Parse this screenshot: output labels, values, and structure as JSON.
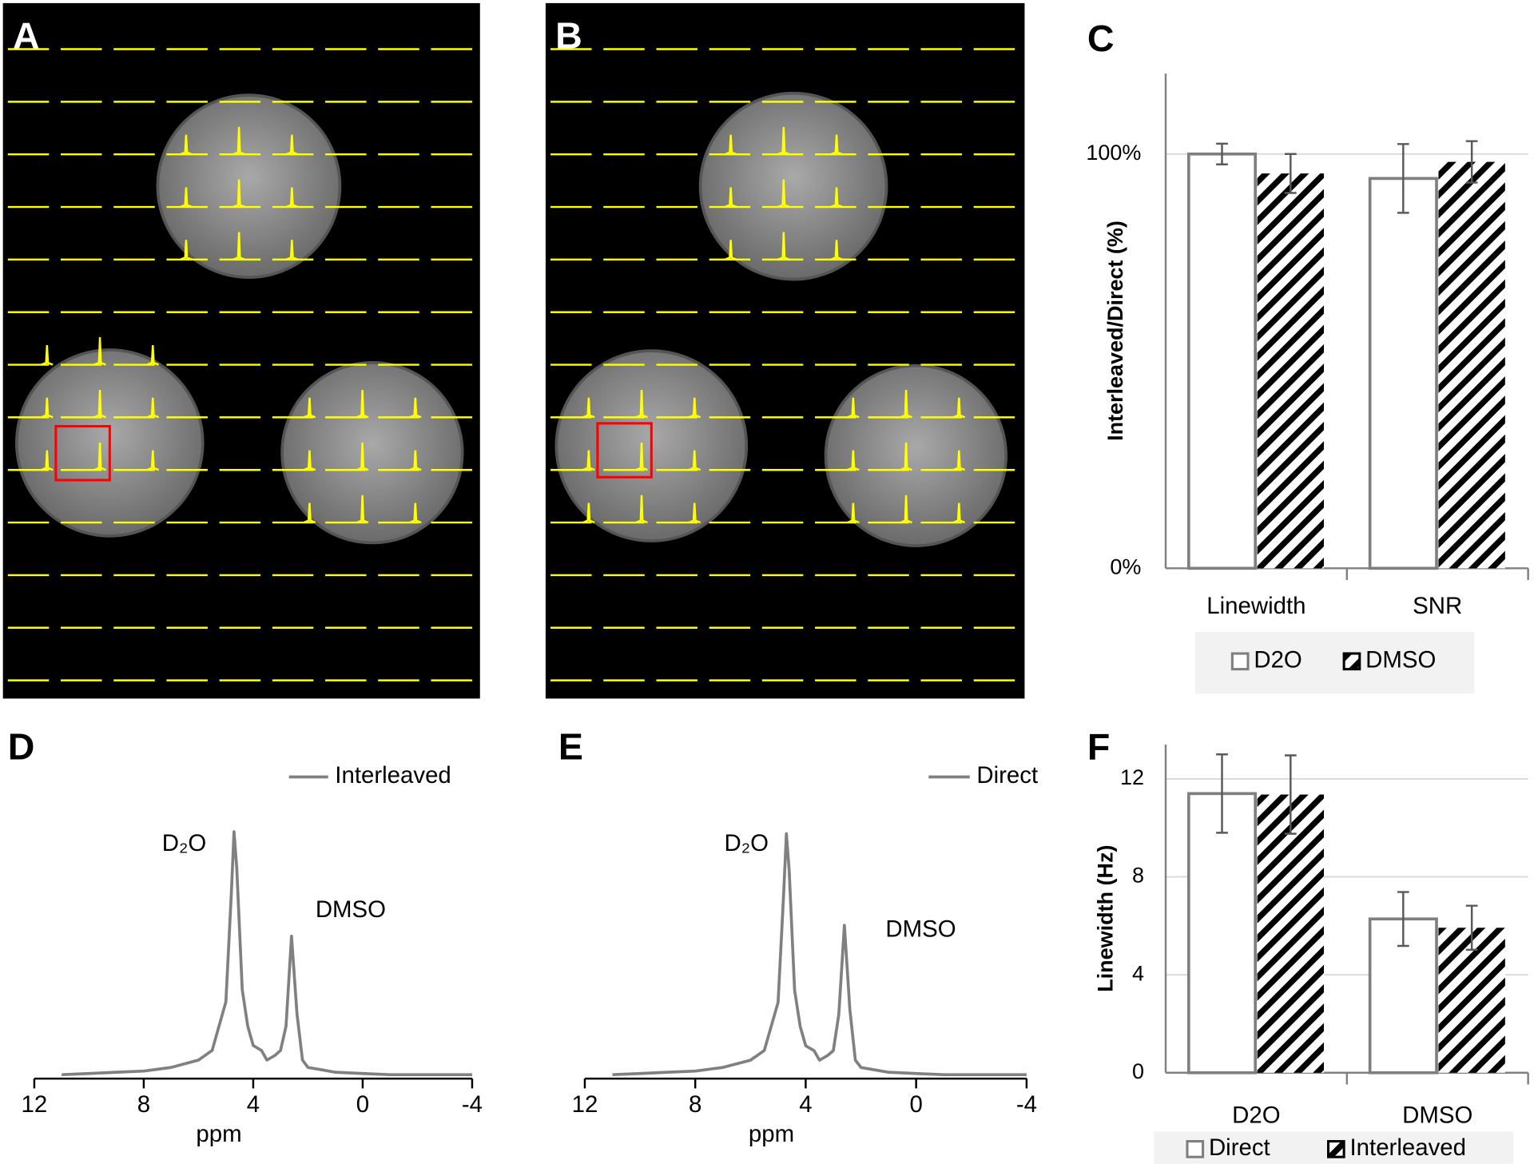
{
  "chart_data": [
    {
      "type": "image",
      "label": "A"
    },
    {
      "type": "image",
      "label": "B"
    },
    {
      "type": "bar",
      "label": "C",
      "y_label": "Interleaved/Direct (%)",
      "categories": [
        "Linewidth",
        "SNR"
      ],
      "series": [
        {
          "name": "D2O",
          "color": "#7f7f7f",
          "hatch": false,
          "values": [
            100,
            94.1
          ],
          "errors": [
            2.5,
            8.3
          ]
        },
        {
          "name": "DMSO",
          "color": "#000000",
          "hatch": true,
          "values": [
            95.3,
            98.1
          ],
          "errors": [
            4.7,
            5
          ]
        }
      ],
      "ylim": [
        0,
        119.4
      ],
      "yticks": [
        {
          "value": 0,
          "label": "0%"
        },
        {
          "value": 100,
          "label": "100%"
        }
      ],
      "grid": true
    },
    {
      "type": "line",
      "label": "D",
      "x_label": "ppm",
      "annotations": [
        "D₂O",
        "DMSO"
      ],
      "x": [
        11,
        10,
        9,
        8,
        7,
        6,
        5.5,
        5,
        4.8,
        4.7,
        4.6,
        4.4,
        4.2,
        4,
        3.7,
        3.5,
        3.2,
        3,
        2.8,
        2.6,
        2.4,
        2.2,
        2,
        1.5,
        1,
        0,
        -1,
        -2,
        -3,
        -4
      ],
      "series": [
        {
          "name": "Interleaved",
          "color": "#808080",
          "values": [
            0,
            0.005,
            0.01,
            0.015,
            0.03,
            0.06,
            0.1,
            0.3,
            0.75,
            1.0,
            0.85,
            0.35,
            0.2,
            0.12,
            0.1,
            0.06,
            0.08,
            0.1,
            0.2,
            0.57,
            0.25,
            0.06,
            0.03,
            0.02,
            0.01,
            0.005,
            0,
            0,
            0,
            0
          ]
        }
      ],
      "xlim": [
        12,
        -4
      ],
      "xticks": [
        12,
        8,
        4,
        0,
        -4
      ],
      "ylim": [
        0,
        1
      ]
    },
    {
      "type": "line",
      "label": "E",
      "x_label": "ppm",
      "annotations": [
        "D₂O",
        "DMSO"
      ],
      "x": [
        11,
        10,
        9,
        8,
        7,
        6,
        5.5,
        5,
        4.8,
        4.7,
        4.6,
        4.4,
        4.2,
        4,
        3.7,
        3.5,
        3.2,
        3,
        2.8,
        2.6,
        2.4,
        2.2,
        2,
        1.5,
        1,
        0,
        -1,
        -2,
        -3,
        -4
      ],
      "series": [
        {
          "name": "Direct",
          "color": "#808080",
          "values": [
            0,
            0.005,
            0.01,
            0.015,
            0.03,
            0.06,
            0.1,
            0.3,
            0.75,
            1.0,
            0.85,
            0.35,
            0.2,
            0.12,
            0.1,
            0.06,
            0.08,
            0.1,
            0.25,
            0.62,
            0.27,
            0.06,
            0.03,
            0.02,
            0.01,
            0.005,
            0,
            0,
            0,
            0
          ]
        }
      ],
      "xlim": [
        12,
        -4
      ],
      "xticks": [
        12,
        8,
        4,
        0,
        -4
      ],
      "ylim": [
        0,
        1
      ]
    },
    {
      "type": "bar",
      "label": "F",
      "y_label": "Linewidth (Hz)",
      "categories": [
        "D2O",
        "DMSO"
      ],
      "series": [
        {
          "name": "Direct",
          "color": "#7f7f7f",
          "hatch": false,
          "values": [
            11.4,
            6.28
          ],
          "errors": [
            1.6,
            1.1
          ]
        },
        {
          "name": "Interleaved",
          "color": "#000000",
          "hatch": true,
          "values": [
            11.36,
            5.92
          ],
          "errors": [
            1.6,
            0.9
          ]
        }
      ],
      "ylim": [
        0,
        13.4
      ],
      "yticks": [
        0,
        4,
        8,
        12
      ],
      "grid": true
    }
  ]
}
